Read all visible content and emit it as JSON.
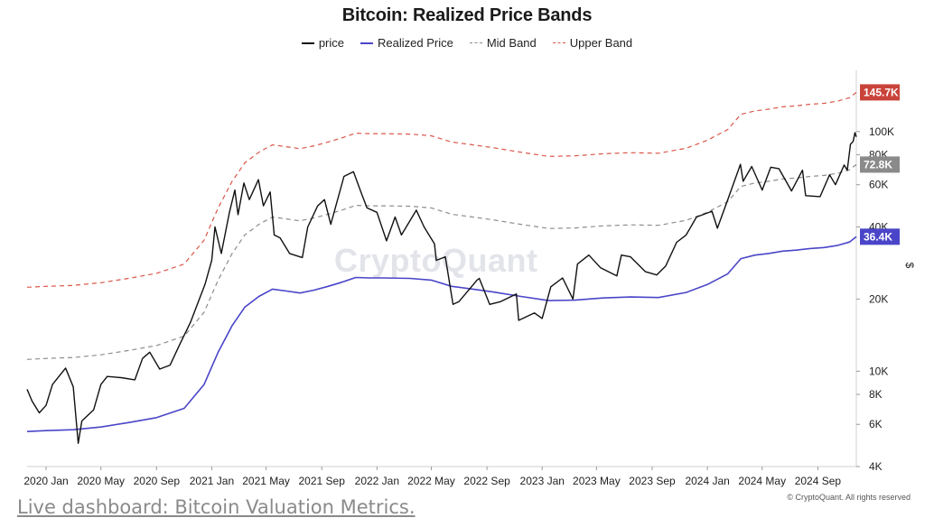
{
  "colors": {
    "price": "#111111",
    "realized": "#4a45c8",
    "mid": "#8c8c8c",
    "upper": "#d9574a",
    "badge_upper": "#c9433a",
    "badge_mid": "#8a8a8a",
    "badge_realized": "#4a45c8"
  },
  "footer": {
    "link_text": "Live dashboard: Bitcoin Valuation Metrics.",
    "copyright": "© CryptoQuant. All rights reserved",
    "watermark": "CryptoQuant"
  },
  "chart_data": {
    "type": "line",
    "title": "Bitcoin: Realized Price Bands",
    "y_scale": "log",
    "ylabel": "$",
    "ylim": [
      4000,
      180000
    ],
    "xlim": [
      "2019-11-20",
      "2024-11-25"
    ],
    "grid": false,
    "legend_position": "top-center",
    "x_tick_labels": [
      "2020 Jan",
      "2020 May",
      "2020 Sep",
      "2021 Jan",
      "2021 May",
      "2021 Sep",
      "2022 Jan",
      "2022 May",
      "2022 Sep",
      "2023 Jan",
      "2023 May",
      "2023 Sep",
      "2024 Jan",
      "2024 May",
      "2024 Sep"
    ],
    "x_tick_dates": [
      "2020-01-01",
      "2020-05-01",
      "2020-09-01",
      "2021-01-01",
      "2021-05-01",
      "2021-09-01",
      "2022-01-01",
      "2022-05-01",
      "2022-09-01",
      "2023-01-01",
      "2023-05-01",
      "2023-09-01",
      "2024-01-01",
      "2024-05-01",
      "2024-09-01"
    ],
    "y_ticks": [
      {
        "value": 4000,
        "label": "4K"
      },
      {
        "value": 6000,
        "label": "6K"
      },
      {
        "value": 8000,
        "label": "8K"
      },
      {
        "value": 10000,
        "label": "10K"
      },
      {
        "value": 20000,
        "label": "20K"
      },
      {
        "value": 40000,
        "label": "40K"
      },
      {
        "value": 60000,
        "label": "60K"
      },
      {
        "value": 80000,
        "label": "80K"
      },
      {
        "value": 100000,
        "label": "100K"
      }
    ],
    "last_value_badges": [
      {
        "series": "Upper Band",
        "value": 145700,
        "label": "145.7K"
      },
      {
        "series": "Mid Band",
        "value": 72800,
        "label": "72.8K"
      },
      {
        "series": "Realized Price",
        "value": 36400,
        "label": "36.4K"
      }
    ],
    "series": [
      {
        "name": "price",
        "style": "solid",
        "points": [
          [
            "2019-11-20",
            8400
          ],
          [
            "2019-12-01",
            7500
          ],
          [
            "2019-12-17",
            6700
          ],
          [
            "2020-01-01",
            7200
          ],
          [
            "2020-01-15",
            8800
          ],
          [
            "2020-02-13",
            10300
          ],
          [
            "2020-03-01",
            8600
          ],
          [
            "2020-03-12",
            5000
          ],
          [
            "2020-03-20",
            6200
          ],
          [
            "2020-04-15",
            6900
          ],
          [
            "2020-05-01",
            8800
          ],
          [
            "2020-05-15",
            9500
          ],
          [
            "2020-06-15",
            9400
          ],
          [
            "2020-07-15",
            9200
          ],
          [
            "2020-08-01",
            11300
          ],
          [
            "2020-08-17",
            12000
          ],
          [
            "2020-09-08",
            10200
          ],
          [
            "2020-10-01",
            10600
          ],
          [
            "2020-10-21",
            12800
          ],
          [
            "2020-11-15",
            16000
          ],
          [
            "2020-12-01",
            19200
          ],
          [
            "2020-12-17",
            23000
          ],
          [
            "2021-01-01",
            29000
          ],
          [
            "2021-01-08",
            40000
          ],
          [
            "2021-01-22",
            31000
          ],
          [
            "2021-02-09",
            46000
          ],
          [
            "2021-02-21",
            57000
          ],
          [
            "2021-02-28",
            45000
          ],
          [
            "2021-03-13",
            61000
          ],
          [
            "2021-03-25",
            52000
          ],
          [
            "2021-04-14",
            63000
          ],
          [
            "2021-04-25",
            49000
          ],
          [
            "2021-05-10",
            56000
          ],
          [
            "2021-05-19",
            37000
          ],
          [
            "2021-06-01",
            36000
          ],
          [
            "2021-06-22",
            31000
          ],
          [
            "2021-07-20",
            29800
          ],
          [
            "2021-08-01",
            40000
          ],
          [
            "2021-08-23",
            49000
          ],
          [
            "2021-09-07",
            52000
          ],
          [
            "2021-09-21",
            41000
          ],
          [
            "2021-10-01",
            48000
          ],
          [
            "2021-10-20",
            65000
          ],
          [
            "2021-11-10",
            68000
          ],
          [
            "2021-11-28",
            55000
          ],
          [
            "2021-12-10",
            48000
          ],
          [
            "2022-01-01",
            46000
          ],
          [
            "2022-01-22",
            35000
          ],
          [
            "2022-02-10",
            44000
          ],
          [
            "2022-02-24",
            37000
          ],
          [
            "2022-03-29",
            47000
          ],
          [
            "2022-04-15",
            40000
          ],
          [
            "2022-05-08",
            34000
          ],
          [
            "2022-05-12",
            29000
          ],
          [
            "2022-06-01",
            30000
          ],
          [
            "2022-06-18",
            19000
          ],
          [
            "2022-07-01",
            19500
          ],
          [
            "2022-08-10",
            24000
          ],
          [
            "2022-08-15",
            24400
          ],
          [
            "2022-09-07",
            19000
          ],
          [
            "2022-10-01",
            19500
          ],
          [
            "2022-11-05",
            21000
          ],
          [
            "2022-11-10",
            16300
          ],
          [
            "2022-12-15",
            17500
          ],
          [
            "2023-01-01",
            16600
          ],
          [
            "2023-01-20",
            22500
          ],
          [
            "2023-02-15",
            24500
          ],
          [
            "2023-03-10",
            20000
          ],
          [
            "2023-03-20",
            28000
          ],
          [
            "2023-04-14",
            30500
          ],
          [
            "2023-05-10",
            27000
          ],
          [
            "2023-06-15",
            25000
          ],
          [
            "2023-06-25",
            30500
          ],
          [
            "2023-07-15",
            30000
          ],
          [
            "2023-08-17",
            26000
          ],
          [
            "2023-09-11",
            25200
          ],
          [
            "2023-10-01",
            27500
          ],
          [
            "2023-10-25",
            34500
          ],
          [
            "2023-11-15",
            37000
          ],
          [
            "2023-12-08",
            44000
          ],
          [
            "2024-01-11",
            46500
          ],
          [
            "2024-01-23",
            39500
          ],
          [
            "2024-02-15",
            52000
          ],
          [
            "2024-03-14",
            73000
          ],
          [
            "2024-03-20",
            62000
          ],
          [
            "2024-04-08",
            71500
          ],
          [
            "2024-05-01",
            57000
          ],
          [
            "2024-05-20",
            71000
          ],
          [
            "2024-06-07",
            70000
          ],
          [
            "2024-07-05",
            56500
          ],
          [
            "2024-07-29",
            69000
          ],
          [
            "2024-08-05",
            54000
          ],
          [
            "2024-09-06",
            53500
          ],
          [
            "2024-09-27",
            66000
          ],
          [
            "2024-10-10",
            60000
          ],
          [
            "2024-10-29",
            72500
          ],
          [
            "2024-11-05",
            69000
          ],
          [
            "2024-11-12",
            88500
          ],
          [
            "2024-11-18",
            91000
          ],
          [
            "2024-11-22",
            99000
          ],
          [
            "2024-11-25",
            95000
          ]
        ]
      },
      {
        "name": "Realized Price",
        "style": "solid",
        "points": [
          [
            "2019-11-20",
            5600
          ],
          [
            "2020-01-01",
            5650
          ],
          [
            "2020-03-01",
            5700
          ],
          [
            "2020-05-01",
            5850
          ],
          [
            "2020-07-01",
            6100
          ],
          [
            "2020-09-01",
            6400
          ],
          [
            "2020-11-01",
            7000
          ],
          [
            "2020-12-15",
            8800
          ],
          [
            "2021-01-15",
            12000
          ],
          [
            "2021-02-15",
            15500
          ],
          [
            "2021-03-15",
            18500
          ],
          [
            "2021-04-15",
            20500
          ],
          [
            "2021-05-15",
            22000
          ],
          [
            "2021-06-15",
            21600
          ],
          [
            "2021-07-15",
            21200
          ],
          [
            "2021-08-15",
            21800
          ],
          [
            "2021-09-15",
            22600
          ],
          [
            "2021-10-15",
            23500
          ],
          [
            "2021-11-15",
            24600
          ],
          [
            "2021-12-15",
            24500
          ],
          [
            "2022-01-15",
            24500
          ],
          [
            "2022-03-15",
            24400
          ],
          [
            "2022-05-01",
            24000
          ],
          [
            "2022-06-15",
            22600
          ],
          [
            "2022-08-01",
            22000
          ],
          [
            "2022-09-15",
            21400
          ],
          [
            "2022-11-15",
            20500
          ],
          [
            "2023-01-15",
            19700
          ],
          [
            "2023-03-15",
            19800
          ],
          [
            "2023-05-15",
            20200
          ],
          [
            "2023-07-15",
            20400
          ],
          [
            "2023-09-15",
            20300
          ],
          [
            "2023-11-15",
            21300
          ],
          [
            "2024-01-01",
            23000
          ],
          [
            "2024-02-15",
            25500
          ],
          [
            "2024-03-15",
            29500
          ],
          [
            "2024-04-15",
            30500
          ],
          [
            "2024-05-15",
            31000
          ],
          [
            "2024-06-15",
            31700
          ],
          [
            "2024-07-15",
            32000
          ],
          [
            "2024-08-15",
            32500
          ],
          [
            "2024-09-15",
            32800
          ],
          [
            "2024-10-15",
            33500
          ],
          [
            "2024-11-10",
            34600
          ],
          [
            "2024-11-25",
            36400
          ]
        ]
      },
      {
        "name": "Mid Band",
        "style": "dashed",
        "points": [
          [
            "2019-11-20",
            11200
          ],
          [
            "2020-01-01",
            11300
          ],
          [
            "2020-03-01",
            11400
          ],
          [
            "2020-05-01",
            11700
          ],
          [
            "2020-07-01",
            12200
          ],
          [
            "2020-09-01",
            12800
          ],
          [
            "2020-11-01",
            14000
          ],
          [
            "2020-12-15",
            17600
          ],
          [
            "2021-01-15",
            24000
          ],
          [
            "2021-02-15",
            31000
          ],
          [
            "2021-03-15",
            37000
          ],
          [
            "2021-04-15",
            41000
          ],
          [
            "2021-05-15",
            44000
          ],
          [
            "2021-06-15",
            43200
          ],
          [
            "2021-07-15",
            42400
          ],
          [
            "2021-08-15",
            43600
          ],
          [
            "2021-09-15",
            45200
          ],
          [
            "2021-10-15",
            47000
          ],
          [
            "2021-11-15",
            49200
          ],
          [
            "2021-12-15",
            49000
          ],
          [
            "2022-01-15",
            49000
          ],
          [
            "2022-03-15",
            48800
          ],
          [
            "2022-05-01",
            48000
          ],
          [
            "2022-06-15",
            45200
          ],
          [
            "2022-08-01",
            44000
          ],
          [
            "2022-09-15",
            42800
          ],
          [
            "2022-11-15",
            41000
          ],
          [
            "2023-01-15",
            39400
          ],
          [
            "2023-03-15",
            39600
          ],
          [
            "2023-05-15",
            40400
          ],
          [
            "2023-07-15",
            40800
          ],
          [
            "2023-09-15",
            40600
          ],
          [
            "2023-11-15",
            42600
          ],
          [
            "2024-01-01",
            46000
          ],
          [
            "2024-02-15",
            51000
          ],
          [
            "2024-03-15",
            59000
          ],
          [
            "2024-04-15",
            61000
          ],
          [
            "2024-05-15",
            62000
          ],
          [
            "2024-06-15",
            63400
          ],
          [
            "2024-07-15",
            64000
          ],
          [
            "2024-08-15",
            65000
          ],
          [
            "2024-09-15",
            65600
          ],
          [
            "2024-10-15",
            67000
          ],
          [
            "2024-11-10",
            69200
          ],
          [
            "2024-11-25",
            72800
          ]
        ]
      },
      {
        "name": "Upper Band",
        "style": "dashed",
        "points": [
          [
            "2019-11-20",
            22400
          ],
          [
            "2020-01-01",
            22600
          ],
          [
            "2020-03-01",
            22800
          ],
          [
            "2020-05-01",
            23400
          ],
          [
            "2020-07-01",
            24400
          ],
          [
            "2020-09-01",
            25600
          ],
          [
            "2020-11-01",
            28000
          ],
          [
            "2020-12-15",
            35200
          ],
          [
            "2021-01-15",
            48000
          ],
          [
            "2021-02-15",
            62000
          ],
          [
            "2021-03-15",
            74000
          ],
          [
            "2021-04-15",
            82000
          ],
          [
            "2021-05-15",
            88000
          ],
          [
            "2021-06-15",
            86400
          ],
          [
            "2021-07-15",
            84800
          ],
          [
            "2021-08-15",
            87200
          ],
          [
            "2021-09-15",
            90400
          ],
          [
            "2021-10-15",
            94000
          ],
          [
            "2021-11-15",
            98400
          ],
          [
            "2021-12-15",
            98000
          ],
          [
            "2022-01-15",
            98000
          ],
          [
            "2022-03-15",
            97600
          ],
          [
            "2022-05-01",
            96000
          ],
          [
            "2022-06-15",
            90400
          ],
          [
            "2022-08-01",
            88000
          ],
          [
            "2022-09-15",
            85600
          ],
          [
            "2022-11-15",
            82000
          ],
          [
            "2023-01-15",
            78800
          ],
          [
            "2023-03-15",
            79200
          ],
          [
            "2023-05-15",
            80800
          ],
          [
            "2023-07-15",
            81600
          ],
          [
            "2023-09-15",
            81200
          ],
          [
            "2023-11-15",
            85200
          ],
          [
            "2024-01-01",
            92000
          ],
          [
            "2024-02-15",
            102000
          ],
          [
            "2024-03-15",
            118000
          ],
          [
            "2024-04-15",
            122000
          ],
          [
            "2024-05-15",
            124000
          ],
          [
            "2024-06-15",
            126800
          ],
          [
            "2024-07-15",
            128000
          ],
          [
            "2024-08-15",
            130000
          ],
          [
            "2024-09-15",
            131200
          ],
          [
            "2024-10-15",
            134000
          ],
          [
            "2024-11-10",
            138400
          ],
          [
            "2024-11-25",
            145700
          ]
        ]
      }
    ]
  }
}
